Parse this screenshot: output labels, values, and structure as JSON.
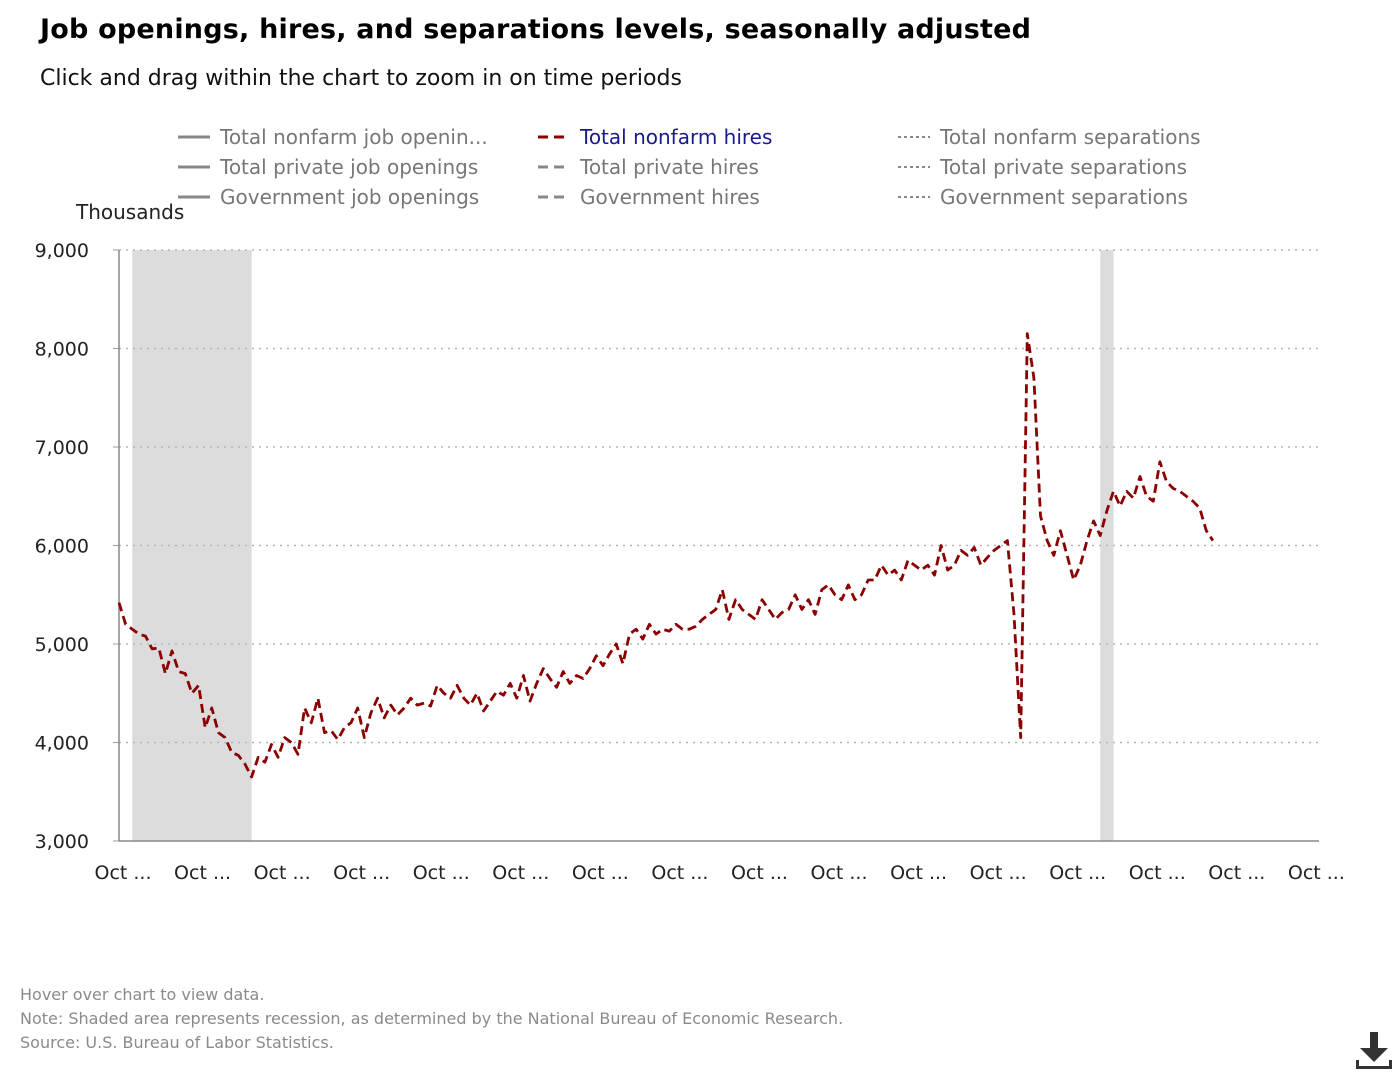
{
  "title": "Job openings, hires, and separations levels, seasonally adjusted",
  "subtitle": "Click and drag within the chart to zoom in on time periods",
  "legend": [
    {
      "label": "Total nonfarm job openin...",
      "style": "solid",
      "color": "#888888",
      "active": false
    },
    {
      "label": "Total nonfarm hires",
      "style": "dashed",
      "color": "#8b0000",
      "active": true
    },
    {
      "label": "Total nonfarm separations",
      "style": "dotted",
      "color": "#888888",
      "active": false
    },
    {
      "label": "Total private job openings",
      "style": "solid",
      "color": "#888888",
      "active": false
    },
    {
      "label": "Total private hires",
      "style": "dashed",
      "color": "#888888",
      "active": false
    },
    {
      "label": "Total private separations",
      "style": "dotted",
      "color": "#888888",
      "active": false
    },
    {
      "label": "Government job openings",
      "style": "solid",
      "color": "#888888",
      "active": false
    },
    {
      "label": "Government hires",
      "style": "dashed",
      "color": "#888888",
      "active": false
    },
    {
      "label": "Government separations",
      "style": "dotted",
      "color": "#888888",
      "active": false
    }
  ],
  "notes": {
    "hover": "Hover over chart to view data.",
    "recession": "Note: Shaded area represents recession, as determined by the National Bureau of Economic Research.",
    "source": "Source: U.S. Bureau of Labor Statistics."
  },
  "chart_data": {
    "type": "line",
    "ylabel": "Thousands",
    "ylim": [
      3000,
      9000
    ],
    "yticks": [
      3000,
      4000,
      5000,
      6000,
      7000,
      8000,
      9000
    ],
    "y_tick_labels": [
      "3,000",
      "4,000",
      "5,000",
      "6,000",
      "7,000",
      "8,000",
      "9,000"
    ],
    "xlim": [
      0,
      181
    ],
    "x_ticks": [
      0,
      12,
      24,
      36,
      48,
      60,
      72,
      84,
      96,
      108,
      120,
      132,
      144,
      156,
      168,
      180
    ],
    "x_tick_label": "Oct ...",
    "grid": {
      "horizontal": true,
      "style": "dotted"
    },
    "recessions": [
      [
        2,
        20
      ],
      [
        148,
        150
      ]
    ],
    "series": [
      {
        "name": "Total nonfarm hires",
        "color": "#8b0000",
        "style": "dashed",
        "values": [
          5420,
          5200,
          5150,
          5100,
          5080,
          4950,
          4960,
          4700,
          4930,
          4720,
          4700,
          4500,
          4580,
          4150,
          4350,
          4100,
          4050,
          3900,
          3870,
          3780,
          3650,
          3850,
          3800,
          3980,
          3850,
          4050,
          4000,
          3880,
          4350,
          4200,
          4450,
          4100,
          4120,
          4030,
          4150,
          4200,
          4350,
          4050,
          4300,
          4450,
          4250,
          4380,
          4280,
          4350,
          4450,
          4380,
          4400,
          4370,
          4580,
          4500,
          4450,
          4580,
          4450,
          4380,
          4500,
          4320,
          4420,
          4520,
          4480,
          4600,
          4450,
          4680,
          4420,
          4600,
          4750,
          4650,
          4560,
          4720,
          4600,
          4680,
          4650,
          4750,
          4880,
          4780,
          4900,
          5000,
          4800,
          5100,
          5150,
          5050,
          5200,
          5100,
          5150,
          5130,
          5200,
          5150,
          5150,
          5180,
          5250,
          5300,
          5350,
          5550,
          5250,
          5450,
          5350,
          5300,
          5250,
          5450,
          5350,
          5250,
          5320,
          5350,
          5500,
          5350,
          5450,
          5300,
          5550,
          5600,
          5500,
          5450,
          5600,
          5450,
          5500,
          5650,
          5650,
          5800,
          5700,
          5750,
          5650,
          5850,
          5800,
          5750,
          5800,
          5700,
          6000,
          5750,
          5800,
          5950,
          5900,
          5980,
          5800,
          5880,
          5950,
          6000,
          6050,
          5300,
          4050,
          8150,
          7700,
          6300,
          6050,
          5900,
          6150,
          5900,
          5650,
          5800,
          6050,
          6250,
          6100,
          6350,
          6550,
          6400,
          6550,
          6480,
          6700,
          6500,
          6450,
          6850,
          6650,
          6580,
          6550,
          6500,
          6450,
          6380,
          6150,
          6050
        ]
      }
    ]
  }
}
